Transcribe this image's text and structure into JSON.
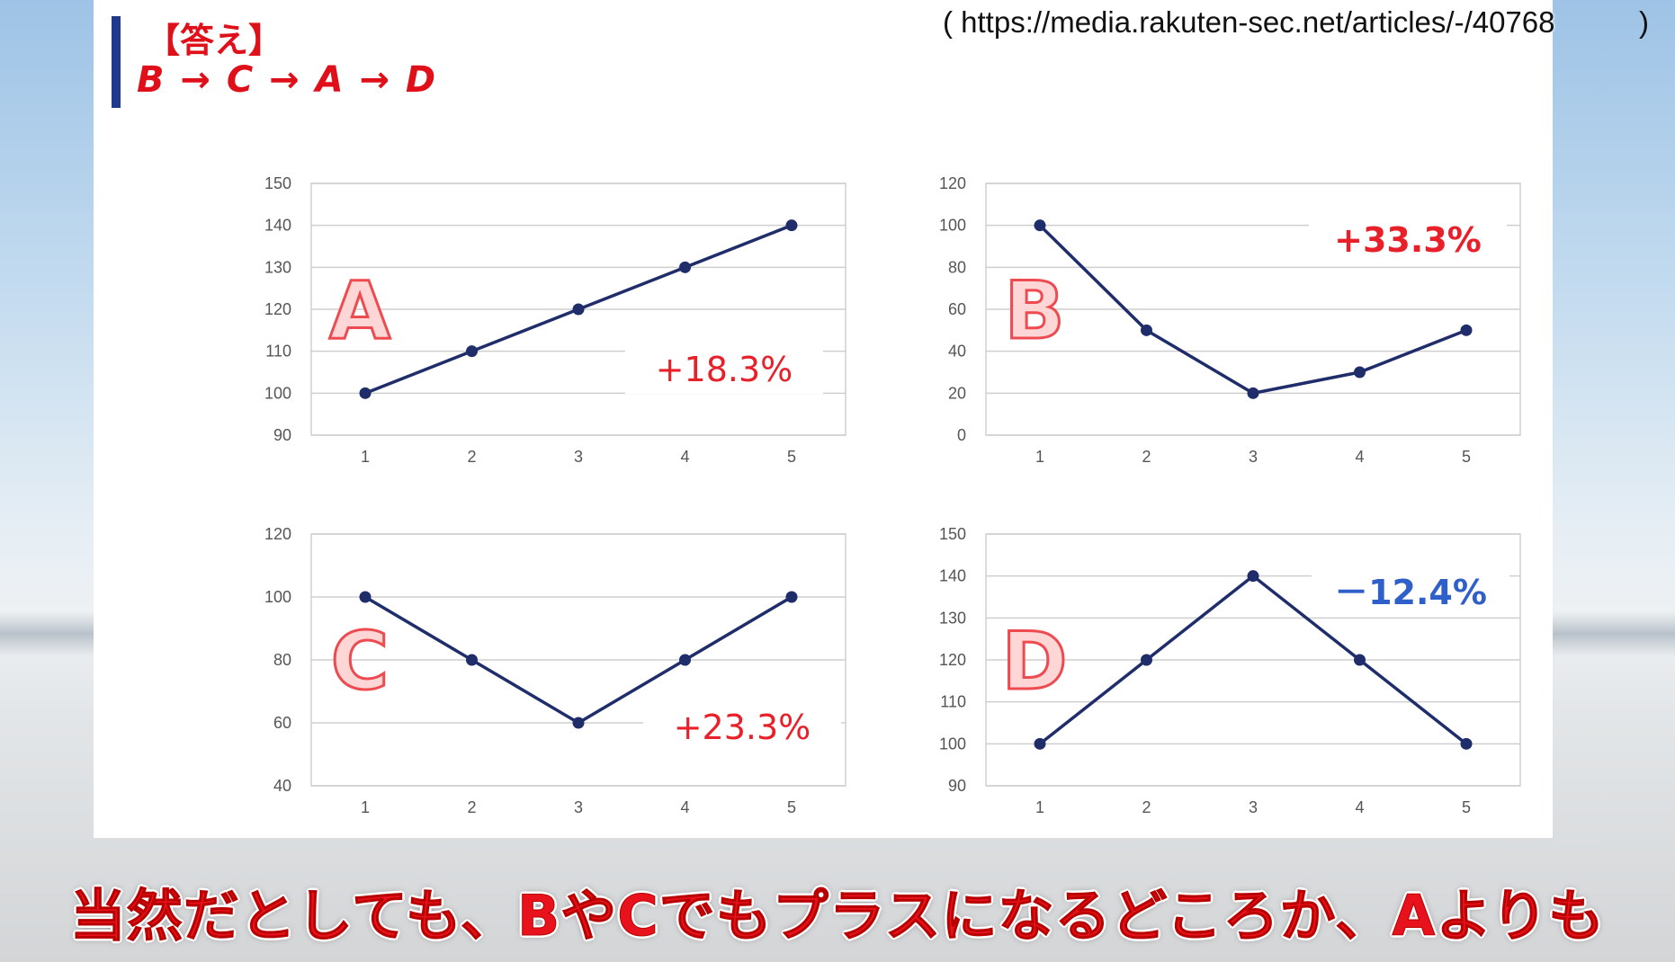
{
  "header": {
    "answer_title": "【答え】",
    "answer_sequence": "B → C → A → D",
    "source_url": "( https://media.rakuten-sec.net/articles/-/40768",
    "source_url_close": ")"
  },
  "subtitle": "当然だとしても、BやCでもプラスになるどころか、Aよりも",
  "colors": {
    "line": "#1f2d6b",
    "positive": "#e8202a",
    "negative": "#2f5fc8",
    "letter_fill": "#ffd6d6",
    "letter_stroke": "#ee4b50"
  },
  "chart_data": [
    {
      "type": "line",
      "letter": "A",
      "x": [
        1,
        2,
        3,
        4,
        5
      ],
      "values": [
        100,
        110,
        120,
        130,
        140
      ],
      "ylim": [
        90,
        150
      ],
      "yticks": [
        90,
        100,
        110,
        120,
        130,
        140,
        150
      ],
      "annotation": "+18.3%",
      "annotation_color": "#e8202a",
      "grid": true
    },
    {
      "type": "line",
      "letter": "B",
      "x": [
        1,
        2,
        3,
        4,
        5
      ],
      "values": [
        100,
        50,
        20,
        30,
        50
      ],
      "ylim": [
        0,
        120
      ],
      "yticks": [
        0,
        20,
        40,
        60,
        80,
        100,
        120
      ],
      "annotation": "+33.3%",
      "annotation_color": "#e8202a",
      "grid": true
    },
    {
      "type": "line",
      "letter": "C",
      "x": [
        1,
        2,
        3,
        4,
        5
      ],
      "values": [
        100,
        80,
        60,
        80,
        100
      ],
      "ylim": [
        40,
        120
      ],
      "yticks": [
        40,
        60,
        80,
        100,
        120
      ],
      "annotation": "+23.3%",
      "annotation_color": "#e8202a",
      "grid": true
    },
    {
      "type": "line",
      "letter": "D",
      "x": [
        1,
        2,
        3,
        4,
        5
      ],
      "values": [
        100,
        120,
        140,
        120,
        100
      ],
      "ylim": [
        90,
        150
      ],
      "yticks": [
        90,
        100,
        110,
        120,
        130,
        140,
        150
      ],
      "annotation": "－12.4%",
      "annotation_color": "#2f5fc8",
      "grid": true
    }
  ]
}
